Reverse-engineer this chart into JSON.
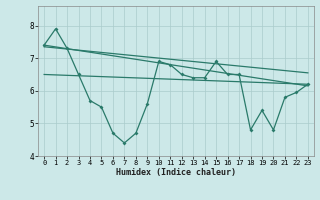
{
  "xlabel": "Humidex (Indice chaleur)",
  "background_color": "#cce8e8",
  "grid_color": "#aacccc",
  "line_color": "#2a7a6a",
  "xlim": [
    -0.5,
    23.5
  ],
  "ylim": [
    4,
    8.6
  ],
  "yticks": [
    4,
    5,
    6,
    7,
    8
  ],
  "xticks": [
    0,
    1,
    2,
    3,
    4,
    5,
    6,
    7,
    8,
    9,
    10,
    11,
    12,
    13,
    14,
    15,
    16,
    17,
    18,
    19,
    20,
    21,
    22,
    23
  ],
  "line1_x": [
    0,
    1,
    2,
    3,
    4,
    5,
    6,
    7,
    8,
    9,
    10,
    11,
    12,
    13,
    14,
    15,
    16,
    17,
    18,
    19,
    20,
    21,
    22,
    23
  ],
  "line1_y": [
    7.4,
    7.9,
    7.3,
    6.5,
    5.7,
    5.5,
    4.7,
    4.4,
    4.7,
    5.6,
    6.9,
    6.8,
    6.5,
    6.4,
    6.4,
    6.9,
    6.5,
    6.5,
    4.8,
    5.4,
    4.8,
    5.8,
    5.95,
    6.2
  ],
  "line2_x": [
    0,
    23
  ],
  "line2_y": [
    7.4,
    6.15
  ],
  "line3_x": [
    0,
    23
  ],
  "line3_y": [
    7.35,
    6.55
  ],
  "line4_x": [
    0,
    23
  ],
  "line4_y": [
    6.5,
    6.2
  ]
}
